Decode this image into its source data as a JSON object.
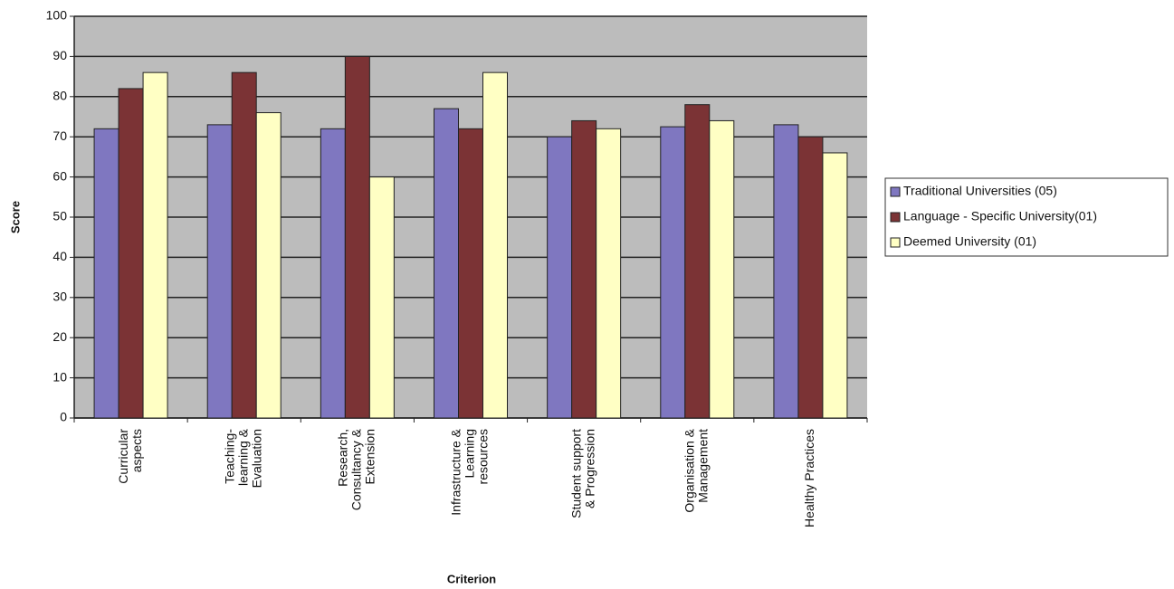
{
  "chart_data": {
    "type": "bar",
    "y_label": "Score",
    "x_label": "Criterion",
    "categories": [
      [
        "Curricular",
        "aspects"
      ],
      [
        "Teaching-",
        "learning &",
        "Evaluation"
      ],
      [
        "Research,",
        "Consultancy &",
        "Extension"
      ],
      [
        "Infrastructure &",
        "Learning",
        "resources"
      ],
      [
        "Student support",
        "& Progression"
      ],
      [
        "Organisation &",
        "Management"
      ],
      [
        "Healthy Practices"
      ]
    ],
    "series": [
      {
        "name": "Traditional Universities (05)",
        "color": "#7f77c0",
        "values": [
          72,
          73,
          72,
          77,
          70,
          72.5,
          73
        ]
      },
      {
        "name": "Language - Specific University(01)",
        "color": "#7b3335",
        "values": [
          82,
          86,
          90,
          72,
          74,
          78,
          70
        ]
      },
      {
        "name": "Deemed University (01)",
        "color": "#ffffc4",
        "values": [
          86,
          76,
          60,
          86,
          72,
          74,
          66
        ]
      }
    ],
    "ylim": [
      0,
      100
    ],
    "yticks": [
      0,
      10,
      20,
      30,
      40,
      50,
      60,
      70,
      80,
      90,
      100
    ],
    "grid": true,
    "legend": "right"
  }
}
